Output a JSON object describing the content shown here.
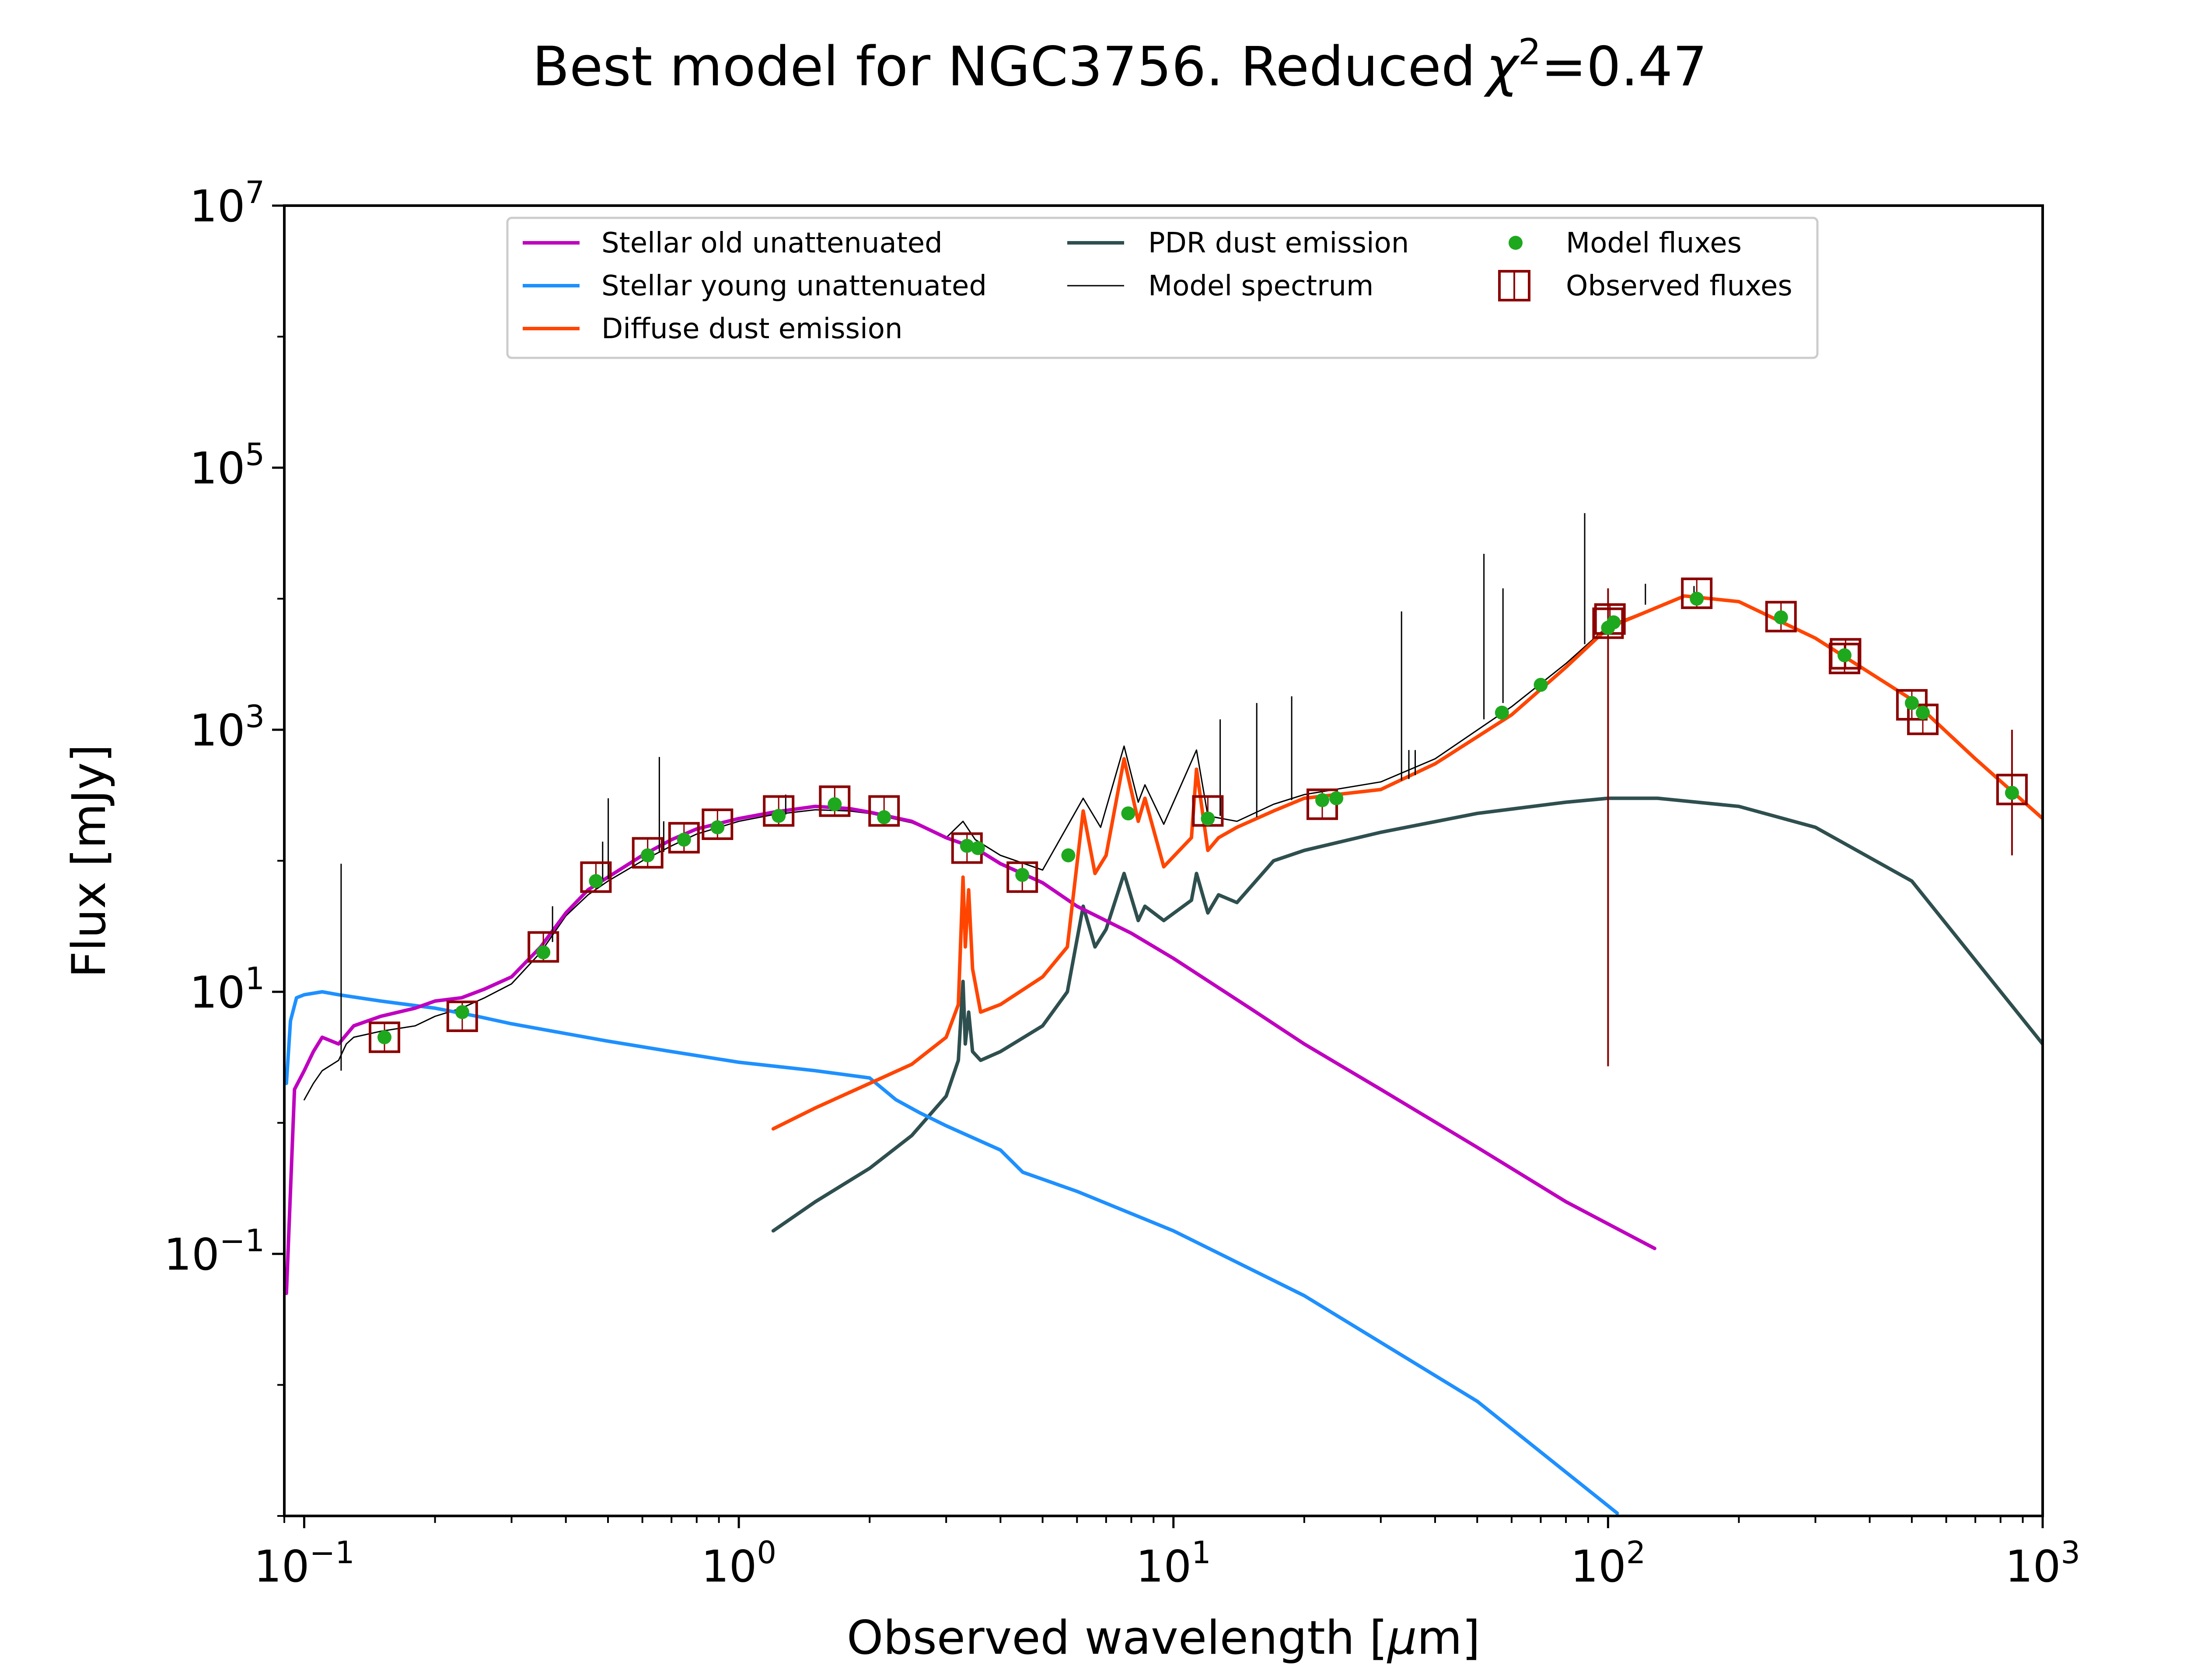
{
  "chart_data": {
    "type": "line",
    "title": "Best model for NGC3756. Reduced",
    "title_chi_symbol": "χ",
    "title_chi_exponent": "2",
    "title_value": "=0.47",
    "xlabel": "Observed wavelength [",
    "xlabel_unit_symbol": "μ",
    "xlabel_unit_rest": "m]",
    "ylabel": "Flux [mJy]",
    "xscale": "log",
    "yscale": "log",
    "xlim": [
      0.09,
      1000
    ],
    "ylim": [
      0.001,
      10000000
    ],
    "x_tick_values": [
      0.1,
      1,
      10,
      100,
      1000
    ],
    "x_tick_labels": [
      [
        "10",
        "−1"
      ],
      [
        "10",
        "0"
      ],
      [
        "10",
        "1"
      ],
      [
        "10",
        "2"
      ],
      [
        "10",
        "3"
      ]
    ],
    "y_tick_values": [
      0.1,
      10,
      1000,
      100000,
      10000000
    ],
    "y_tick_labels": [
      [
        "10",
        "−1"
      ],
      [
        "10",
        "1"
      ],
      [
        "10",
        "3"
      ],
      [
        "10",
        "5"
      ],
      [
        "10",
        "7"
      ]
    ],
    "grid": false,
    "legend_position": "top",
    "colors": {
      "stellar_old": "#bf00bf",
      "stellar_young": "#1e90ff",
      "diffuse_dust": "#ff4500",
      "pdr_dust": "#2f4f4f",
      "model_spectrum": "#000000",
      "model_fluxes": "#1ea81e",
      "observed_fluxes": "#8b0000"
    },
    "series": [
      {
        "name": "Stellar old unattenuated",
        "key": "stellar_old",
        "x": [
          0.091,
          0.095,
          0.1,
          0.105,
          0.11,
          0.12,
          0.13,
          0.15,
          0.18,
          0.2,
          0.23,
          0.26,
          0.3,
          0.35,
          0.4,
          0.45,
          0.5,
          0.6,
          0.7,
          0.8,
          1.0,
          1.2,
          1.5,
          1.8,
          2.0,
          2.5,
          3.0,
          3.5,
          4.0,
          5.0,
          6.0,
          8.0,
          10.0,
          15.0,
          20.0,
          30.0,
          50.0,
          80.0,
          128.0
        ],
        "y": [
          0.05,
          1.8,
          2.5,
          3.5,
          4.5,
          4.0,
          5.5,
          6.5,
          7.5,
          8.5,
          9.0,
          10.5,
          13.0,
          22.0,
          40.0,
          60.0,
          75.0,
          110.0,
          145.0,
          175.0,
          210.0,
          235.0,
          260.0,
          250.0,
          235.0,
          200.0,
          150.0,
          125.0,
          95.0,
          68.0,
          45.0,
          28.0,
          18.0,
          7.5,
          4.0,
          1.8,
          0.65,
          0.25,
          0.11
        ]
      },
      {
        "name": "Stellar young unattenuated",
        "key": "stellar_young",
        "x": [
          0.091,
          0.093,
          0.096,
          0.1,
          0.11,
          0.12,
          0.15,
          0.2,
          0.25,
          0.3,
          0.4,
          0.5,
          0.7,
          1.0,
          1.5,
          2.0,
          2.3,
          2.6,
          3.0,
          4.0,
          4.5,
          6.0,
          10.0,
          20.0,
          50.0,
          105.0
        ],
        "y": [
          2.0,
          6.0,
          9.0,
          9.5,
          10.0,
          9.5,
          8.5,
          7.5,
          6.5,
          5.7,
          4.8,
          4.2,
          3.5,
          2.9,
          2.5,
          2.2,
          1.5,
          1.2,
          0.95,
          0.62,
          0.42,
          0.3,
          0.15,
          0.048,
          0.0075,
          0.00105
        ]
      },
      {
        "name": "Diffuse dust emission",
        "key": "diffuse_dust",
        "x": [
          1.2,
          1.5,
          2.0,
          2.5,
          3.0,
          3.2,
          3.28,
          3.32,
          3.38,
          3.45,
          3.6,
          4.0,
          5.0,
          5.7,
          6.2,
          6.6,
          7.0,
          7.7,
          8.3,
          8.6,
          9.5,
          11.0,
          11.3,
          12.0,
          12.7,
          14.0,
          17.0,
          20.0,
          30.0,
          40.0,
          60.0,
          80.0,
          100.0,
          150.0,
          200.0,
          300.0,
          500.0,
          700.0,
          1000.0
        ],
        "y": [
          0.9,
          1.3,
          2.0,
          2.8,
          4.5,
          8.0,
          75.0,
          22.0,
          60.0,
          15.0,
          7.0,
          8.0,
          13.0,
          22.0,
          240.0,
          80.0,
          110.0,
          600.0,
          200.0,
          300.0,
          90.0,
          150.0,
          500.0,
          120.0,
          150.0,
          180.0,
          240.0,
          300.0,
          350.0,
          550.0,
          1300.0,
          3000.0,
          6000.0,
          10500.0,
          9500.0,
          5000.0,
          1700.0,
          600.0,
          210.0
        ]
      },
      {
        "name": "PDR dust emission",
        "key": "pdr_dust",
        "x": [
          1.2,
          1.5,
          2.0,
          2.5,
          3.0,
          3.2,
          3.28,
          3.32,
          3.38,
          3.45,
          3.6,
          4.0,
          5.0,
          5.7,
          6.2,
          6.6,
          7.0,
          7.7,
          8.3,
          8.6,
          9.5,
          11.0,
          11.3,
          12.0,
          12.7,
          14.0,
          17.0,
          20.0,
          30.0,
          50.0,
          80.0,
          100.0,
          130.0,
          200.0,
          300.0,
          500.0,
          1000.0
        ],
        "y": [
          0.15,
          0.25,
          0.45,
          0.8,
          1.6,
          3.0,
          12.0,
          4.0,
          7.0,
          3.5,
          3.0,
          3.5,
          5.5,
          10.0,
          45.0,
          22.0,
          30.0,
          80.0,
          35.0,
          45.0,
          35.0,
          50.0,
          80.0,
          40.0,
          55.0,
          48.0,
          100.0,
          120.0,
          165.0,
          230.0,
          280.0,
          300.0,
          300.0,
          260.0,
          180.0,
          70.0,
          4.0
        ]
      },
      {
        "name": "Model spectrum",
        "key": "model_spectrum",
        "x": [
          0.1,
          0.105,
          0.11,
          0.12,
          0.125,
          0.13,
          0.15,
          0.18,
          0.2,
          0.23,
          0.26,
          0.3,
          0.35,
          0.4,
          0.45,
          0.5,
          0.6,
          0.7,
          0.8,
          1.0,
          1.2,
          1.5,
          1.8,
          2.0,
          2.5,
          3.0,
          3.28,
          3.5,
          4.0,
          5.0,
          6.2,
          6.8,
          7.7,
          8.3,
          8.6,
          9.5,
          11.3,
          12.0,
          14.0,
          17.0,
          20.0,
          30.0,
          40.0,
          60.0,
          80.0,
          100.0,
          150.0,
          200.0,
          300.0,
          500.0,
          700.0,
          1000.0
        ],
        "y": [
          1.5,
          2.0,
          2.5,
          3.0,
          4.0,
          4.5,
          5.0,
          5.5,
          6.5,
          7.5,
          9.0,
          11.5,
          20.0,
          38.0,
          55.0,
          70.0,
          100.0,
          130.0,
          160.0,
          200.0,
          225.0,
          245.0,
          240.0,
          230.0,
          195.0,
          150.0,
          200.0,
          145.0,
          110.0,
          85.0,
          300.0,
          180.0,
          750.0,
          280.0,
          380.0,
          190.0,
          700.0,
          220.0,
          200.0,
          270.0,
          320.0,
          400.0,
          600.0,
          1500.0,
          3200.0,
          6200.0,
          10500.0,
          9500.0,
          5000.0,
          1700.0,
          600.0,
          210.0
        ]
      },
      {
        "name": "Model fluxes",
        "key": "model_fluxes",
        "x": [
          0.153,
          0.231,
          0.355,
          0.469,
          0.617,
          0.748,
          0.893,
          1.235,
          1.662,
          2.159,
          3.35,
          3.55,
          4.49,
          5.73,
          7.87,
          12.0,
          22.0,
          23.7,
          57.0,
          70.0,
          100.0,
          103.0,
          160.0,
          250.0,
          350.0,
          500.0,
          530.0,
          850.0
        ],
        "y": [
          4.5,
          7.0,
          20.0,
          70.0,
          110.0,
          145.0,
          180.0,
          220.0,
          270.0,
          215.0,
          130.0,
          125.0,
          78.0,
          110.0,
          230.0,
          210.0,
          290.0,
          300.0,
          1350.0,
          2200.0,
          6000.0,
          6600.0,
          10000.0,
          7200.0,
          3700.0,
          1600.0,
          1350.0,
          330.0
        ]
      },
      {
        "name": "Observed fluxes",
        "key": "observed_fluxes",
        "x": [
          0.153,
          0.231,
          0.355,
          0.469,
          0.617,
          0.748,
          0.893,
          1.235,
          1.662,
          2.159,
          3.35,
          4.49,
          12.0,
          22.0,
          100.0,
          101.0,
          160.0,
          250.0,
          350.0,
          352.0,
          500.0,
          530.0,
          850.0
        ],
        "y": [
          4.5,
          6.5,
          22.0,
          75.0,
          115.0,
          150.0,
          190.0,
          240.0,
          285.0,
          240.0,
          125.0,
          75.0,
          240.0,
          270.0,
          6500.0,
          7000.0,
          11000.0,
          7300.0,
          3500.0,
          3800.0,
          1550.0,
          1200.0,
          350.0
        ],
        "err_lo": [
          0,
          0,
          0,
          0,
          0,
          0,
          0,
          0,
          0,
          0,
          0,
          0,
          0,
          0,
          2.7,
          0,
          0,
          0,
          0,
          0,
          0,
          0,
          110
        ],
        "err_hi": [
          0,
          0,
          0,
          0,
          0,
          0,
          0,
          0,
          0,
          0,
          0,
          0,
          0,
          0,
          12000,
          0,
          0,
          0,
          0,
          0,
          0,
          0,
          1000
        ]
      }
    ],
    "emission_lines": [
      {
        "x": 0.1216,
        "base": 2.5,
        "peak": 95.0
      },
      {
        "x": 0.3727,
        "base": 24.0,
        "peak": 45.0
      },
      {
        "x": 0.4861,
        "base": 70.0,
        "peak": 140.0
      },
      {
        "x": 0.5007,
        "base": 72.0,
        "peak": 300.0
      },
      {
        "x": 0.6563,
        "base": 115.0,
        "peak": 620.0
      },
      {
        "x": 0.6717,
        "base": 117.0,
        "peak": 200.0
      },
      {
        "x": 1.282,
        "base": 225.0,
        "peak": 320.0
      },
      {
        "x": 12.81,
        "base": 220.0,
        "peak": 1200.0
      },
      {
        "x": 15.55,
        "base": 215.0,
        "peak": 1600.0
      },
      {
        "x": 18.71,
        "base": 290.0,
        "peak": 1800.0
      },
      {
        "x": 33.48,
        "base": 410.0,
        "peak": 8000.0
      },
      {
        "x": 34.81,
        "base": 420.0,
        "peak": 700.0
      },
      {
        "x": 36.0,
        "base": 450.0,
        "peak": 700.0
      },
      {
        "x": 51.81,
        "base": 1200.0,
        "peak": 22000.0
      },
      {
        "x": 57.32,
        "base": 1600.0,
        "peak": 12000.0
      },
      {
        "x": 88.36,
        "base": 4500.0,
        "peak": 45000.0
      },
      {
        "x": 121.9,
        "base": 9000.0,
        "peak": 13000.0
      },
      {
        "x": 157.7,
        "base": 10500.0,
        "peak": 12500.0
      }
    ]
  }
}
